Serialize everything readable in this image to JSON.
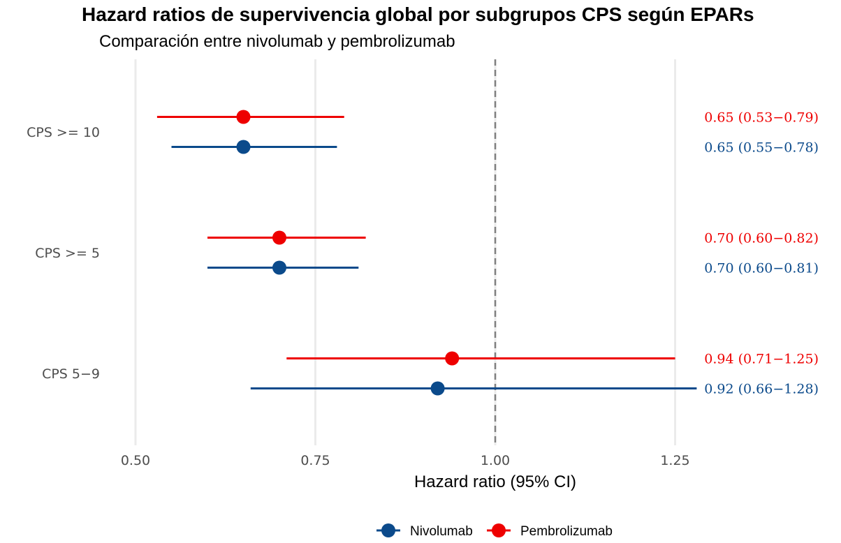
{
  "chart_data": {
    "type": "forest",
    "title": "Hazard ratios de supervivencia global por subgrupos CPS según EPARs",
    "subtitle": "Comparación entre nivolumab y pembrolizumab",
    "xlabel": "Hazard ratio (95% CI)",
    "xlim": [
      0.46,
      1.28
    ],
    "xticks": [
      0.5,
      0.75,
      1.0,
      1.25
    ],
    "xtick_labels": [
      "0.50",
      "0.75",
      "1.00",
      "1.25"
    ],
    "reference_line": 1.0,
    "grid": true,
    "legend_position": "bottom",
    "categories": [
      "CPS >= 10",
      "CPS >= 5",
      "CPS 5−9"
    ],
    "series": [
      {
        "name": "Pembrolizumab",
        "color": "#ee0000",
        "points": [
          {
            "hr": 0.65,
            "lower": 0.53,
            "upper": 0.79,
            "label": "0.65 (0.53−0.79)"
          },
          {
            "hr": 0.7,
            "lower": 0.6,
            "upper": 0.82,
            "label": "0.70 (0.60−0.82)"
          },
          {
            "hr": 0.94,
            "lower": 0.71,
            "upper": 1.25,
            "label": "0.94 (0.71−1.25)"
          }
        ]
      },
      {
        "name": "Nivolumab",
        "color": "#0b4a8b",
        "points": [
          {
            "hr": 0.65,
            "lower": 0.55,
            "upper": 0.78,
            "label": "0.65 (0.55−0.78)"
          },
          {
            "hr": 0.7,
            "lower": 0.6,
            "upper": 0.81,
            "label": "0.70 (0.60−0.81)"
          },
          {
            "hr": 0.92,
            "lower": 0.66,
            "upper": 1.28,
            "label": "0.92 (0.66−1.28)"
          }
        ]
      }
    ],
    "legend_order": [
      "Nivolumab",
      "Pembrolizumab"
    ]
  }
}
